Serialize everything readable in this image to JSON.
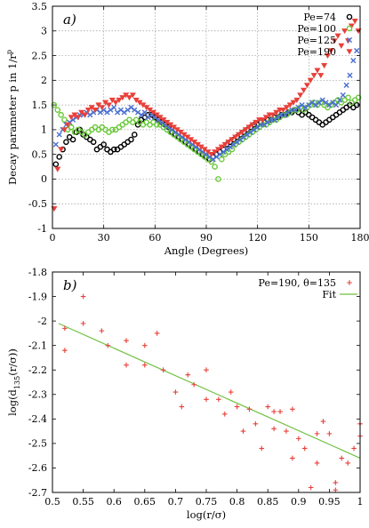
{
  "chart_data": [
    {
      "type": "scatter",
      "panel_label": "a)",
      "xlabel": "Angle (Degrees)",
      "ylabel": "Decay parameter p in 1/r",
      "ylabel_sup": "p",
      "xlim": [
        0,
        180
      ],
      "ylim": [
        -1,
        3.5
      ],
      "xticks": [
        0,
        30,
        60,
        90,
        120,
        150,
        180
      ],
      "yticks": [
        -1,
        -0.5,
        0,
        0.5,
        1,
        1.5,
        2,
        2.5,
        3,
        3.5
      ],
      "grid": true,
      "legend_position": "top-right",
      "series": [
        {
          "name": "Pe=74",
          "marker": "circle",
          "color": "#000000",
          "x": [
            2,
            4,
            6,
            8,
            10,
            12,
            14,
            16,
            18,
            20,
            22,
            24,
            26,
            28,
            30,
            32,
            34,
            36,
            38,
            40,
            42,
            44,
            46,
            48,
            50,
            52,
            54,
            56,
            58,
            60,
            62,
            64,
            66,
            68,
            70,
            72,
            74,
            76,
            78,
            80,
            82,
            84,
            86,
            88,
            90,
            92,
            94,
            96,
            98,
            100,
            102,
            104,
            106,
            108,
            110,
            112,
            114,
            116,
            118,
            120,
            122,
            124,
            126,
            128,
            130,
            132,
            134,
            136,
            138,
            140,
            142,
            144,
            146,
            148,
            150,
            152,
            154,
            156,
            158,
            160,
            162,
            164,
            166,
            168,
            170,
            172,
            174,
            176,
            178
          ],
          "y": [
            0.3,
            0.45,
            0.6,
            0.75,
            0.85,
            0.8,
            0.95,
            1.0,
            0.9,
            0.85,
            0.8,
            0.75,
            0.6,
            0.65,
            0.7,
            0.6,
            0.55,
            0.6,
            0.6,
            0.65,
            0.7,
            0.75,
            0.8,
            0.9,
            1.1,
            1.2,
            1.25,
            1.3,
            1.3,
            1.25,
            1.2,
            1.15,
            1.1,
            1.05,
            0.95,
            0.9,
            0.85,
            0.8,
            0.75,
            0.7,
            0.65,
            0.6,
            0.55,
            0.5,
            0.45,
            0.4,
            0.45,
            0.5,
            0.55,
            0.6,
            0.7,
            0.75,
            0.8,
            0.85,
            0.9,
            0.95,
            1.0,
            1.05,
            1.1,
            1.1,
            1.15,
            1.15,
            1.2,
            1.2,
            1.25,
            1.25,
            1.3,
            1.3,
            1.35,
            1.35,
            1.4,
            1.35,
            1.3,
            1.35,
            1.3,
            1.25,
            1.2,
            1.15,
            1.1,
            1.15,
            1.2,
            1.25,
            1.3,
            1.35,
            1.4,
            1.45,
            1.5,
            1.45,
            1.5
          ]
        },
        {
          "name": "Pe=100",
          "marker": "circle",
          "color": "#6ac93a",
          "x": [
            1,
            3,
            5,
            7,
            9,
            11,
            13,
            15,
            17,
            19,
            21,
            23,
            25,
            27,
            29,
            31,
            33,
            35,
            37,
            39,
            41,
            43,
            45,
            47,
            49,
            51,
            53,
            55,
            57,
            59,
            61,
            63,
            65,
            67,
            69,
            71,
            73,
            75,
            77,
            79,
            81,
            83,
            85,
            87,
            89,
            91,
            93,
            95,
            97,
            99,
            101,
            103,
            105,
            107,
            109,
            111,
            113,
            115,
            117,
            119,
            121,
            123,
            125,
            127,
            129,
            131,
            133,
            135,
            137,
            139,
            141,
            143,
            145,
            147,
            149,
            151,
            153,
            155,
            157,
            159,
            161,
            163,
            165,
            167,
            169,
            171,
            173,
            175,
            177,
            179
          ],
          "y": [
            1.5,
            1.4,
            1.3,
            1.2,
            1.0,
            1.05,
            0.95,
            1.0,
            0.95,
            0.9,
            0.95,
            1.0,
            1.05,
            1.0,
            1.05,
            1.0,
            0.95,
            1.0,
            1.0,
            1.05,
            1.1,
            1.15,
            1.2,
            1.15,
            1.2,
            1.15,
            1.1,
            1.15,
            1.1,
            1.15,
            1.1,
            1.1,
            1.05,
            1.0,
            0.95,
            0.9,
            0.85,
            0.8,
            0.75,
            0.7,
            0.65,
            0.6,
            0.55,
            0.5,
            0.45,
            0.4,
            0.35,
            0.25,
            0.0,
            0.4,
            0.5,
            0.55,
            0.6,
            0.7,
            0.75,
            0.8,
            0.85,
            0.9,
            0.95,
            1.0,
            1.05,
            1.1,
            1.1,
            1.15,
            1.2,
            1.2,
            1.25,
            1.3,
            1.3,
            1.35,
            1.4,
            1.4,
            1.45,
            1.4,
            1.45,
            1.5,
            1.55,
            1.5,
            1.55,
            1.5,
            1.45,
            1.5,
            1.55,
            1.6,
            1.55,
            1.6,
            1.65,
            1.55,
            1.6,
            1.65
          ]
        },
        {
          "name": "Pe=125",
          "marker": "x",
          "color": "#4a6fd0",
          "x": [
            2,
            4,
            6,
            8,
            10,
            12,
            14,
            16,
            18,
            20,
            22,
            24,
            26,
            28,
            30,
            32,
            34,
            36,
            38,
            40,
            42,
            44,
            46,
            48,
            50,
            52,
            54,
            56,
            58,
            60,
            62,
            64,
            66,
            68,
            70,
            72,
            74,
            76,
            78,
            80,
            82,
            84,
            86,
            88,
            90,
            92,
            94,
            96,
            98,
            100,
            102,
            104,
            106,
            108,
            110,
            112,
            114,
            116,
            118,
            120,
            122,
            124,
            126,
            128,
            130,
            132,
            134,
            136,
            138,
            140,
            142,
            144,
            146,
            148,
            150,
            152,
            154,
            156,
            158,
            160,
            162,
            164,
            166,
            168,
            170,
            172,
            174,
            176,
            178
          ],
          "y": [
            0.7,
            0.9,
            1.0,
            1.1,
            1.15,
            1.2,
            1.25,
            1.3,
            1.3,
            1.35,
            1.3,
            1.35,
            1.4,
            1.35,
            1.4,
            1.35,
            1.4,
            1.45,
            1.35,
            1.4,
            1.35,
            1.4,
            1.45,
            1.4,
            1.35,
            1.3,
            1.35,
            1.25,
            1.3,
            1.25,
            1.2,
            1.15,
            1.1,
            1.05,
            1.0,
            0.95,
            0.9,
            0.85,
            0.8,
            0.75,
            0.7,
            0.65,
            0.6,
            0.55,
            0.5,
            0.45,
            0.4,
            0.45,
            0.5,
            0.55,
            0.6,
            0.65,
            0.7,
            0.75,
            0.8,
            0.85,
            0.9,
            0.95,
            1.0,
            1.05,
            1.1,
            1.1,
            1.15,
            1.2,
            1.2,
            1.25,
            1.3,
            1.3,
            1.35,
            1.4,
            1.4,
            1.45,
            1.5,
            1.45,
            1.5,
            1.55,
            1.5,
            1.55,
            1.6,
            1.55,
            1.5,
            1.55,
            1.5,
            1.6,
            1.7,
            1.9,
            2.1,
            2.4,
            2.6
          ]
        },
        {
          "name": "Pe=190",
          "marker": "triangle-down",
          "color": "#e8403a",
          "x": [
            1,
            3,
            5,
            7,
            9,
            11,
            13,
            15,
            17,
            19,
            21,
            23,
            25,
            27,
            29,
            31,
            33,
            35,
            37,
            39,
            41,
            43,
            45,
            47,
            49,
            51,
            53,
            55,
            57,
            59,
            61,
            63,
            65,
            67,
            69,
            71,
            73,
            75,
            77,
            79,
            81,
            83,
            85,
            87,
            89,
            91,
            93,
            95,
            97,
            99,
            101,
            103,
            105,
            107,
            109,
            111,
            113,
            115,
            117,
            119,
            121,
            123,
            125,
            127,
            129,
            131,
            133,
            135,
            137,
            139,
            141,
            143,
            145,
            147,
            149,
            151,
            153,
            155,
            157,
            159,
            161,
            163,
            165,
            167,
            169,
            171,
            173,
            175,
            177,
            179
          ],
          "y": [
            -0.6,
            0.2,
            0.6,
            1.0,
            1.1,
            1.25,
            1.3,
            1.25,
            1.35,
            1.3,
            1.4,
            1.45,
            1.4,
            1.5,
            1.45,
            1.55,
            1.5,
            1.6,
            1.55,
            1.6,
            1.65,
            1.7,
            1.65,
            1.7,
            1.6,
            1.55,
            1.5,
            1.45,
            1.4,
            1.35,
            1.3,
            1.25,
            1.2,
            1.15,
            1.1,
            1.05,
            1.0,
            0.95,
            0.9,
            0.85,
            0.8,
            0.75,
            0.7,
            0.65,
            0.6,
            0.55,
            0.5,
            0.55,
            0.6,
            0.65,
            0.7,
            0.75,
            0.8,
            0.85,
            0.9,
            0.95,
            1.0,
            1.05,
            1.1,
            1.15,
            1.2,
            1.2,
            1.25,
            1.3,
            1.3,
            1.35,
            1.4,
            1.4,
            1.45,
            1.5,
            1.55,
            1.6,
            1.7,
            1.8,
            1.9,
            2.0,
            2.1,
            2.2,
            2.1,
            2.3,
            2.5,
            2.6,
            2.8,
            2.9,
            2.7,
            3.0,
            2.8,
            3.1,
            3.2,
            3.0
          ]
        }
      ]
    },
    {
      "type": "scatter",
      "panel_label": "b)",
      "xlabel": "log(r/σ)",
      "ylabel": "log(d",
      "ylabel_sub": "135",
      "ylabel_tail": "(r/σ))",
      "xlim": [
        0.5,
        1.0
      ],
      "ylim": [
        -2.7,
        -1.8
      ],
      "xticks": [
        0.5,
        0.55,
        0.6,
        0.65,
        0.7,
        0.75,
        0.8,
        0.85,
        0.9,
        0.95,
        1
      ],
      "yticks": [
        -2.7,
        -2.6,
        -2.5,
        -2.4,
        -2.3,
        -2.2,
        -2.1,
        -2.0,
        -1.9,
        -1.8
      ],
      "legend_position": "top-right",
      "series": [
        {
          "name": "Pe=190, θ=135",
          "marker": "plus",
          "color": "#e8403a",
          "x": [
            0.52,
            0.52,
            0.55,
            0.55,
            0.58,
            0.59,
            0.62,
            0.62,
            0.65,
            0.65,
            0.67,
            0.68,
            0.7,
            0.71,
            0.72,
            0.73,
            0.75,
            0.75,
            0.77,
            0.78,
            0.79,
            0.8,
            0.81,
            0.82,
            0.83,
            0.84,
            0.85,
            0.86,
            0.86,
            0.87,
            0.88,
            0.89,
            0.89,
            0.9,
            0.91,
            0.92,
            0.93,
            0.93,
            0.94,
            0.95,
            0.96,
            0.96,
            0.97,
            0.98,
            0.99,
            1.0,
            1.0
          ],
          "y": [
            -2.03,
            -2.12,
            -1.9,
            -2.01,
            -2.04,
            -2.1,
            -2.08,
            -2.18,
            -2.1,
            -2.18,
            -2.05,
            -2.2,
            -2.29,
            -2.35,
            -2.22,
            -2.26,
            -2.2,
            -2.32,
            -2.32,
            -2.38,
            -2.29,
            -2.35,
            -2.45,
            -2.36,
            -2.42,
            -2.52,
            -2.35,
            -2.44,
            -2.37,
            -2.37,
            -2.45,
            -2.56,
            -2.36,
            -2.48,
            -2.52,
            -2.68,
            -2.58,
            -2.46,
            -2.41,
            -2.46,
            -2.66,
            -2.69,
            -2.56,
            -2.58,
            -2.52,
            -2.42,
            -2.47
          ]
        }
      ],
      "fit": {
        "name": "Fit",
        "color": "#72c142",
        "x": [
          0.51,
          1.0
        ],
        "y": [
          -2.01,
          -2.56
        ]
      }
    }
  ]
}
